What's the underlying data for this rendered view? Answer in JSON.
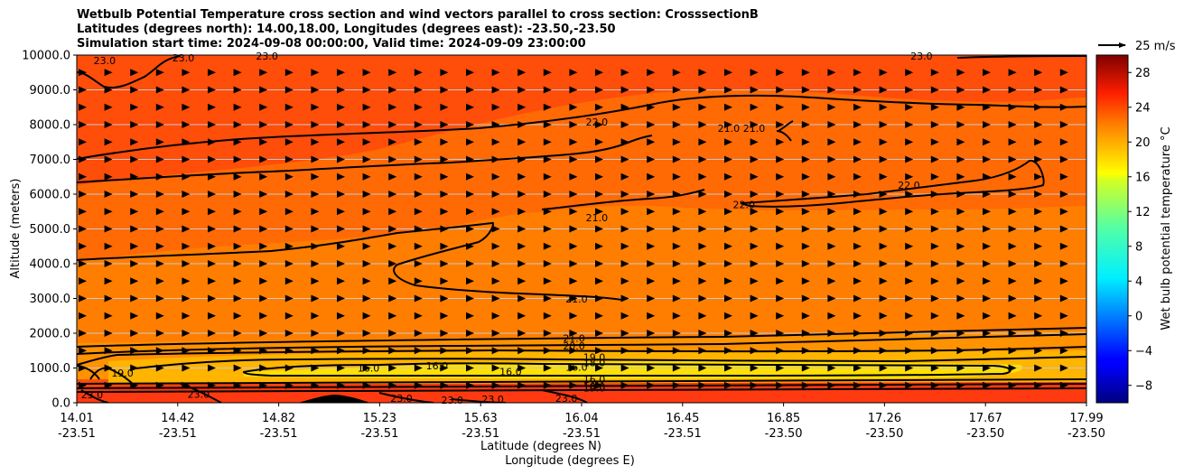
{
  "chart_data": {
    "type": "heatmap",
    "title_lines": [
      "Wetbulb Potential Temperature cross section and wind vectors parallel to cross section: CrosssectionB",
      "Latitudes (degrees north): 14.00,18.00, Longitudes (degrees east): -23.50,-23.50",
      "Simulation start time: 2024-09-08 00:00:00, Valid time: 2024-09-09 23:00:00"
    ],
    "ylabel": "Altitude (meters)",
    "xlabel_lat": "Latitude (degrees N)",
    "xlabel_lon": "Longitude (degrees E)",
    "ylim": [
      0,
      10000
    ],
    "y_ticks": [
      "0.0",
      "1000.0",
      "2000.0",
      "3000.0",
      "4000.0",
      "5000.0",
      "6000.0",
      "7000.0",
      "8000.0",
      "9000.0",
      "10000.0"
    ],
    "x_ticks": [
      {
        "lat": "14.01",
        "lon": "-23.51"
      },
      {
        "lat": "14.42",
        "lon": "-23.51"
      },
      {
        "lat": "14.82",
        "lon": "-23.51"
      },
      {
        "lat": "15.23",
        "lon": "-23.51"
      },
      {
        "lat": "15.63",
        "lon": "-23.51"
      },
      {
        "lat": "16.04",
        "lon": "-23.51"
      },
      {
        "lat": "16.45",
        "lon": "-23.51"
      },
      {
        "lat": "16.85",
        "lon": "-23.50"
      },
      {
        "lat": "17.26",
        "lon": "-23.50"
      },
      {
        "lat": "17.67",
        "lon": "-23.50"
      },
      {
        "lat": "17.99",
        "lon": "-23.50"
      }
    ],
    "colorbar": {
      "label": "Wet bulb potential temperature $^\\circ$C",
      "label_text": "Wet bulb potential temperature °C",
      "range": [
        -10,
        30
      ],
      "ticks": [
        "−8",
        "−4",
        "0",
        "4",
        "8",
        "12",
        "16",
        "20",
        "24",
        "28"
      ]
    },
    "quiver_key": {
      "label": "25 m/s",
      "speed": 25
    },
    "contour_levels": [
      16.0,
      18.0,
      19.0,
      20.0,
      21.0,
      22.0,
      23.0
    ],
    "contour_labels": [
      {
        "text": "23.0",
        "lat": 14.12,
        "alt": 9850
      },
      {
        "text": "23.0",
        "lat": 14.43,
        "alt": 9920
      },
      {
        "text": "23.0",
        "lat": 14.76,
        "alt": 9980
      },
      {
        "text": "23.0",
        "lat": 17.34,
        "alt": 9980
      },
      {
        "text": "22.0",
        "lat": 16.06,
        "alt": 8080
      },
      {
        "text": "21.0",
        "lat": 16.58,
        "alt": 7900
      },
      {
        "text": "21.0",
        "lat": 16.68,
        "alt": 7900
      },
      {
        "text": "22.0",
        "lat": 17.29,
        "alt": 6260
      },
      {
        "text": "22.0",
        "lat": 16.64,
        "alt": 5700
      },
      {
        "text": "21.0",
        "lat": 16.06,
        "alt": 5320
      },
      {
        "text": "21.0",
        "lat": 15.98,
        "alt": 2990
      },
      {
        "text": "21.0",
        "lat": 15.97,
        "alt": 1860
      },
      {
        "text": "20.0",
        "lat": 15.97,
        "alt": 1640
      },
      {
        "text": "19.0",
        "lat": 16.05,
        "alt": 1310
      },
      {
        "text": "18.0",
        "lat": 16.05,
        "alt": 1150
      },
      {
        "text": "16.0",
        "lat": 15.98,
        "alt": 1020
      },
      {
        "text": "16.0",
        "lat": 16.05,
        "alt": 680
      },
      {
        "text": "18.0",
        "lat": 16.05,
        "alt": 470
      },
      {
        "text": "19.0",
        "lat": 16.05,
        "alt": 430
      },
      {
        "text": "19.0",
        "lat": 14.19,
        "alt": 860
      },
      {
        "text": "16.0",
        "lat": 15.16,
        "alt": 1000
      },
      {
        "text": "16.0",
        "lat": 15.43,
        "alt": 1070
      },
      {
        "text": "16.0",
        "lat": 15.72,
        "alt": 900
      },
      {
        "text": "23.0",
        "lat": 14.07,
        "alt": 230
      },
      {
        "text": "23.0",
        "lat": 14.49,
        "alt": 250
      },
      {
        "text": "23.0",
        "lat": 15.29,
        "alt": 130
      },
      {
        "text": "23.0",
        "lat": 15.49,
        "alt": 80
      },
      {
        "text": "23.0",
        "lat": 15.65,
        "alt": 110
      },
      {
        "text": "23.0",
        "lat": 15.94,
        "alt": 130
      }
    ],
    "wind": {
      "direction": "parallel, toward increasing latitude",
      "typical_speed_ms": 8
    }
  }
}
